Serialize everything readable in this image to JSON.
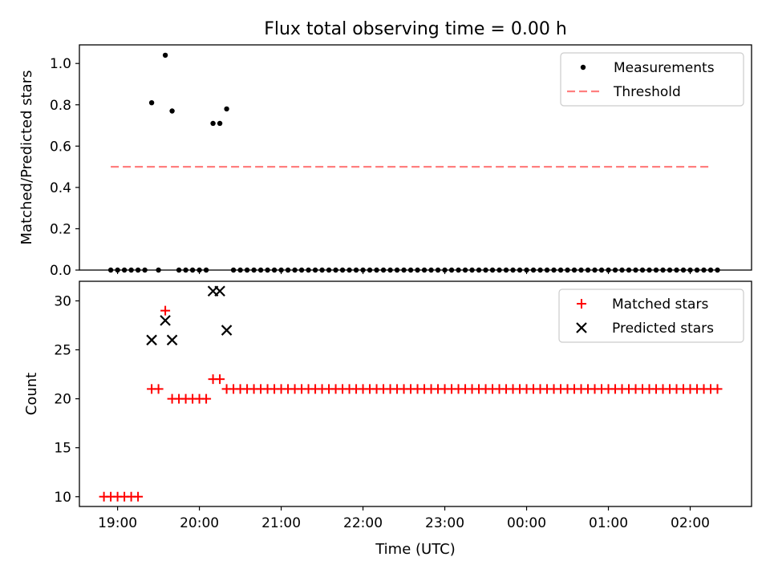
{
  "figure": {
    "title": "Flux total observing time = 0.00 h",
    "xlabel": "Time (UTC)"
  },
  "chart_data": [
    {
      "type": "scatter",
      "title": "Flux total observing time = 0.00 h",
      "xlabel": "",
      "ylabel": "Matched/Predicted stars",
      "ylim": [
        0,
        1.09
      ],
      "xlim": [
        "18:32",
        "02:45"
      ],
      "x_ticks": [
        "19:00",
        "20:00",
        "21:00",
        "22:00",
        "23:00",
        "00:00",
        "01:00",
        "02:00"
      ],
      "y_ticks": [
        "0.0",
        "0.2",
        "0.4",
        "0.6",
        "0.8",
        "1.0"
      ],
      "legend": "top-right",
      "grid": false,
      "series": [
        {
          "name": "Measurements",
          "color": "#000000",
          "marker": "dot",
          "points": [
            [
              "18:55",
              0
            ],
            [
              "19:00",
              0
            ],
            [
              "19:05",
              0
            ],
            [
              "19:10",
              0
            ],
            [
              "19:15",
              0
            ],
            [
              "19:20",
              0
            ],
            [
              "19:25",
              0.81
            ],
            [
              "19:30",
              0
            ],
            [
              "19:35",
              1.04
            ],
            [
              "19:40",
              0.77
            ],
            [
              "19:45",
              0
            ],
            [
              "19:50",
              0
            ],
            [
              "19:55",
              0
            ],
            [
              "20:00",
              0
            ],
            [
              "20:05",
              0
            ],
            [
              "20:10",
              0.71
            ],
            [
              "20:15",
              0.71
            ],
            [
              "20:20",
              0.78
            ],
            [
              "20:25",
              0
            ],
            [
              "20:30",
              0
            ],
            [
              "20:35",
              0
            ],
            [
              "20:40",
              0
            ],
            [
              "20:45",
              0
            ],
            [
              "20:50",
              0
            ],
            [
              "20:55",
              0
            ],
            [
              "21:00",
              0
            ],
            [
              "21:05",
              0
            ],
            [
              "21:10",
              0
            ],
            [
              "21:15",
              0
            ],
            [
              "21:20",
              0
            ],
            [
              "21:25",
              0
            ],
            [
              "21:30",
              0
            ],
            [
              "21:35",
              0
            ],
            [
              "21:40",
              0
            ],
            [
              "21:45",
              0
            ],
            [
              "21:50",
              0
            ],
            [
              "21:55",
              0
            ],
            [
              "22:00",
              0
            ],
            [
              "22:05",
              0
            ],
            [
              "22:10",
              0
            ],
            [
              "22:15",
              0
            ],
            [
              "22:20",
              0
            ],
            [
              "22:25",
              0
            ],
            [
              "22:30",
              0
            ],
            [
              "22:35",
              0
            ],
            [
              "22:40",
              0
            ],
            [
              "22:45",
              0
            ],
            [
              "22:50",
              0
            ],
            [
              "22:55",
              0
            ],
            [
              "23:00",
              0
            ],
            [
              "23:05",
              0
            ],
            [
              "23:10",
              0
            ],
            [
              "23:15",
              0
            ],
            [
              "23:20",
              0
            ],
            [
              "23:25",
              0
            ],
            [
              "23:30",
              0
            ],
            [
              "23:35",
              0
            ],
            [
              "23:40",
              0
            ],
            [
              "23:45",
              0
            ],
            [
              "23:50",
              0
            ],
            [
              "23:55",
              0
            ],
            [
              "00:00",
              0
            ],
            [
              "00:05",
              0
            ],
            [
              "00:10",
              0
            ],
            [
              "00:15",
              0
            ],
            [
              "00:20",
              0
            ],
            [
              "00:25",
              0
            ],
            [
              "00:30",
              0
            ],
            [
              "00:35",
              0
            ],
            [
              "00:40",
              0
            ],
            [
              "00:45",
              0
            ],
            [
              "00:50",
              0
            ],
            [
              "00:55",
              0
            ],
            [
              "01:00",
              0
            ],
            [
              "01:05",
              0
            ],
            [
              "01:10",
              0
            ],
            [
              "01:15",
              0
            ],
            [
              "01:20",
              0
            ],
            [
              "01:25",
              0
            ],
            [
              "01:30",
              0
            ],
            [
              "01:35",
              0
            ],
            [
              "01:40",
              0
            ],
            [
              "01:45",
              0
            ],
            [
              "01:50",
              0
            ],
            [
              "01:55",
              0
            ],
            [
              "02:00",
              0
            ],
            [
              "02:05",
              0
            ],
            [
              "02:10",
              0
            ],
            [
              "02:15",
              0
            ],
            [
              "02:20",
              0
            ]
          ]
        },
        {
          "name": "Threshold",
          "color": "#ff7f7f",
          "style": "dashed",
          "points": [
            [
              "18:55",
              0.5
            ],
            [
              "02:15",
              0.5
            ]
          ]
        }
      ]
    },
    {
      "type": "scatter",
      "title": "",
      "xlabel": "Time (UTC)",
      "ylabel": "Count",
      "ylim": [
        9,
        32
      ],
      "xlim": [
        "18:32",
        "02:45"
      ],
      "x_ticks": [
        "19:00",
        "20:00",
        "21:00",
        "22:00",
        "23:00",
        "00:00",
        "01:00",
        "02:00"
      ],
      "y_ticks": [
        "10",
        "15",
        "20",
        "25",
        "30"
      ],
      "legend": "top-right",
      "grid": false,
      "series": [
        {
          "name": "Matched stars",
          "color": "#ff0000",
          "marker": "plus",
          "points": [
            [
              "18:50",
              10
            ],
            [
              "18:55",
              10
            ],
            [
              "19:00",
              10
            ],
            [
              "19:05",
              10
            ],
            [
              "19:10",
              10
            ],
            [
              "19:15",
              10
            ],
            [
              "19:25",
              21
            ],
            [
              "19:30",
              21
            ],
            [
              "19:35",
              29
            ],
            [
              "19:40",
              20
            ],
            [
              "19:45",
              20
            ],
            [
              "19:50",
              20
            ],
            [
              "19:55",
              20
            ],
            [
              "20:00",
              20
            ],
            [
              "20:05",
              20
            ],
            [
              "20:10",
              22
            ],
            [
              "20:15",
              22
            ],
            [
              "20:20",
              21
            ],
            [
              "20:25",
              21
            ],
            [
              "20:30",
              21
            ],
            [
              "20:35",
              21
            ],
            [
              "20:40",
              21
            ],
            [
              "20:45",
              21
            ],
            [
              "20:50",
              21
            ],
            [
              "20:55",
              21
            ],
            [
              "21:00",
              21
            ],
            [
              "21:05",
              21
            ],
            [
              "21:10",
              21
            ],
            [
              "21:15",
              21
            ],
            [
              "21:20",
              21
            ],
            [
              "21:25",
              21
            ],
            [
              "21:30",
              21
            ],
            [
              "21:35",
              21
            ],
            [
              "21:40",
              21
            ],
            [
              "21:45",
              21
            ],
            [
              "21:50",
              21
            ],
            [
              "21:55",
              21
            ],
            [
              "22:00",
              21
            ],
            [
              "22:05",
              21
            ],
            [
              "22:10",
              21
            ],
            [
              "22:15",
              21
            ],
            [
              "22:20",
              21
            ],
            [
              "22:25",
              21
            ],
            [
              "22:30",
              21
            ],
            [
              "22:35",
              21
            ],
            [
              "22:40",
              21
            ],
            [
              "22:45",
              21
            ],
            [
              "22:50",
              21
            ],
            [
              "22:55",
              21
            ],
            [
              "23:00",
              21
            ],
            [
              "23:05",
              21
            ],
            [
              "23:10",
              21
            ],
            [
              "23:15",
              21
            ],
            [
              "23:20",
              21
            ],
            [
              "23:25",
              21
            ],
            [
              "23:30",
              21
            ],
            [
              "23:35",
              21
            ],
            [
              "23:40",
              21
            ],
            [
              "23:45",
              21
            ],
            [
              "23:50",
              21
            ],
            [
              "23:55",
              21
            ],
            [
              "00:00",
              21
            ],
            [
              "00:05",
              21
            ],
            [
              "00:10",
              21
            ],
            [
              "00:15",
              21
            ],
            [
              "00:20",
              21
            ],
            [
              "00:25",
              21
            ],
            [
              "00:30",
              21
            ],
            [
              "00:35",
              21
            ],
            [
              "00:40",
              21
            ],
            [
              "00:45",
              21
            ],
            [
              "00:50",
              21
            ],
            [
              "00:55",
              21
            ],
            [
              "01:00",
              21
            ],
            [
              "01:05",
              21
            ],
            [
              "01:10",
              21
            ],
            [
              "01:15",
              21
            ],
            [
              "01:20",
              21
            ],
            [
              "01:25",
              21
            ],
            [
              "01:30",
              21
            ],
            [
              "01:35",
              21
            ],
            [
              "01:40",
              21
            ],
            [
              "01:45",
              21
            ],
            [
              "01:50",
              21
            ],
            [
              "01:55",
              21
            ],
            [
              "02:00",
              21
            ],
            [
              "02:05",
              21
            ],
            [
              "02:10",
              21
            ],
            [
              "02:15",
              21
            ],
            [
              "02:20",
              21
            ]
          ]
        },
        {
          "name": "Predicted stars",
          "color": "#000000",
          "marker": "x",
          "points": [
            [
              "19:25",
              26
            ],
            [
              "19:35",
              28
            ],
            [
              "19:40",
              26
            ],
            [
              "20:10",
              31
            ],
            [
              "20:15",
              31
            ],
            [
              "20:20",
              27
            ]
          ]
        }
      ]
    }
  ]
}
